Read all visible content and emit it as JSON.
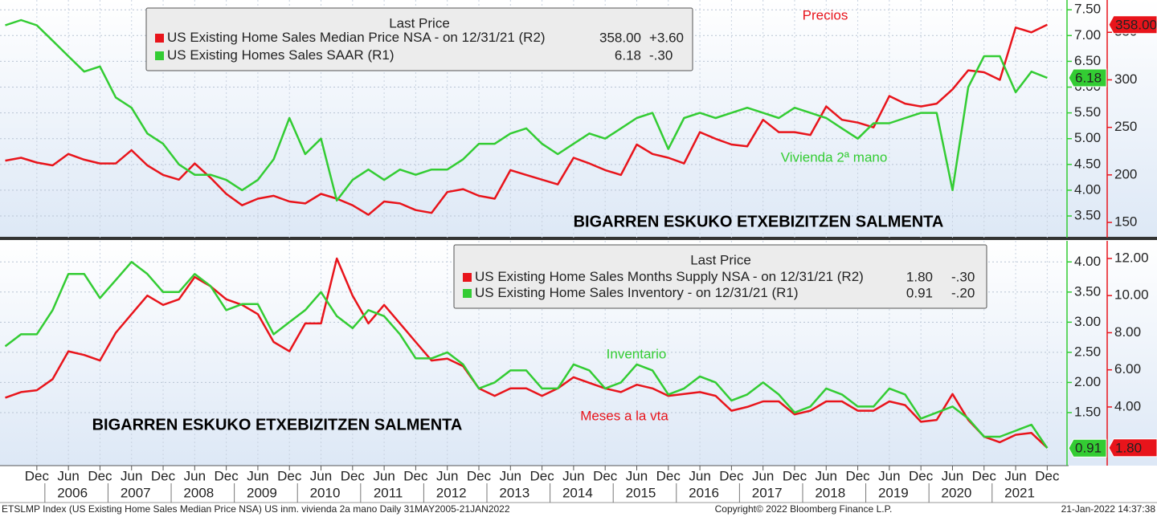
{
  "chart_data": [
    {
      "type": "line",
      "legend_title": "Last Price",
      "xlim": [
        "2005-05",
        "2022-03"
      ],
      "ylim": [
        3.08,
        7.69
      ],
      "yticks": [
        {
          "value": 3.5,
          "label": "3.50"
        },
        {
          "value": 4,
          "label": "4.00"
        },
        {
          "value": 4.5,
          "label": "4.50"
        },
        {
          "value": 5,
          "label": "5.00"
        },
        {
          "value": 5.5,
          "label": "5.50"
        },
        {
          "value": 6,
          "label": "6.00"
        },
        {
          "value": 6.5,
          "label": "6.50"
        },
        {
          "value": 7,
          "label": "7.00"
        },
        {
          "value": 7.5,
          "label": "7.50"
        }
      ],
      "y2lim": [
        134,
        384
      ],
      "y2ticks": [
        150,
        200,
        250,
        300,
        350
      ],
      "grid": true,
      "x": [
        "2005-06",
        "2005-09",
        "2005-12",
        "2006-03",
        "2006-06",
        "2006-09",
        "2006-12",
        "2007-03",
        "2007-06",
        "2007-09",
        "2007-12",
        "2008-03",
        "2008-06",
        "2008-09",
        "2008-12",
        "2009-03",
        "2009-06",
        "2009-09",
        "2009-12",
        "2010-03",
        "2010-06",
        "2010-09",
        "2010-12",
        "2011-03",
        "2011-06",
        "2011-09",
        "2011-12",
        "2012-03",
        "2012-06",
        "2012-09",
        "2012-12",
        "2013-03",
        "2013-06",
        "2013-09",
        "2013-12",
        "2014-03",
        "2014-06",
        "2014-09",
        "2014-12",
        "2015-03",
        "2015-06",
        "2015-09",
        "2015-12",
        "2016-03",
        "2016-06",
        "2016-09",
        "2016-12",
        "2017-03",
        "2017-06",
        "2017-09",
        "2017-12",
        "2018-03",
        "2018-06",
        "2018-09",
        "2018-12",
        "2019-03",
        "2019-06",
        "2019-09",
        "2019-12",
        "2020-03",
        "2020-06",
        "2020-09",
        "2020-12",
        "2021-03",
        "2021-06",
        "2021-09",
        "2021-12"
      ],
      "series": [
        {
          "name": "US Existing Home Sales Median Price NSA",
          "note": "-  on 12/31/21  (R2)",
          "last_label": "358.00",
          "change": "+3.60",
          "color": "#e8141b",
          "axis": "y2",
          "values": [
            215,
            218,
            213,
            210,
            222,
            216,
            212,
            212,
            226,
            210,
            200,
            195,
            212,
            197,
            180,
            168,
            175,
            178,
            172,
            170,
            180,
            175,
            168,
            158,
            172,
            170,
            163,
            160,
            182,
            185,
            178,
            175,
            205,
            200,
            195,
            190,
            218,
            212,
            205,
            200,
            232,
            222,
            218,
            212,
            245,
            238,
            232,
            230,
            258,
            245,
            245,
            242,
            272,
            258,
            255,
            250,
            283,
            275,
            272,
            275,
            290,
            310,
            308,
            300,
            355,
            350,
            358
          ]
        },
        {
          "name": "US Existing Homes Sales SAAR",
          "note": "(R1)",
          "last_label": "6.18",
          "change": "-.30",
          "color": "#33cc33",
          "axis": "y",
          "values": [
            7.2,
            7.3,
            7.2,
            6.9,
            6.6,
            6.3,
            6.4,
            5.8,
            5.6,
            5.1,
            4.9,
            4.5,
            4.3,
            4.3,
            4.2,
            4.0,
            4.2,
            4.6,
            5.4,
            4.7,
            5.0,
            3.8,
            4.2,
            4.4,
            4.2,
            4.4,
            4.3,
            4.4,
            4.4,
            4.6,
            4.9,
            4.9,
            5.1,
            5.2,
            4.9,
            4.7,
            4.9,
            5.1,
            5.0,
            5.2,
            5.4,
            5.5,
            4.8,
            5.4,
            5.5,
            5.4,
            5.5,
            5.6,
            5.5,
            5.4,
            5.6,
            5.5,
            5.4,
            5.2,
            5.0,
            5.3,
            5.3,
            5.4,
            5.5,
            5.5,
            4.0,
            6.0,
            6.6,
            6.6,
            5.9,
            6.3,
            6.18
          ]
        }
      ],
      "annotations": [
        {
          "text": "Precios",
          "color": "#e8141b"
        },
        {
          "text": "Vivienda 2ª mano",
          "color": "#33cc33"
        },
        {
          "text": "BIGARREN ESKUKO ETXEBIZITZEN SALMENTA",
          "color": "#000000"
        }
      ]
    },
    {
      "type": "line",
      "legend_title": "Last Price",
      "xlim": [
        "2005-05",
        "2022-03"
      ],
      "ylim": [
        0.62,
        4.35
      ],
      "yticks": [
        {
          "value": 1.5,
          "label": "1.50"
        },
        {
          "value": 2,
          "label": "2.00"
        },
        {
          "value": 2.5,
          "label": "2.50"
        },
        {
          "value": 3,
          "label": "3.00"
        },
        {
          "value": 3.5,
          "label": "3.50"
        },
        {
          "value": 4,
          "label": "4.00"
        }
      ],
      "y2lim": [
        0.84,
        12.95
      ],
      "y2ticks": [
        {
          "value": 4,
          "label": "4.00"
        },
        {
          "value": 6,
          "label": "6.00"
        },
        {
          "value": 8,
          "label": "8.00"
        },
        {
          "value": 10,
          "label": "10.00"
        },
        {
          "value": 12,
          "label": "12.00"
        }
      ],
      "grid": true,
      "x": [
        "2005-06",
        "2005-09",
        "2005-12",
        "2006-03",
        "2006-06",
        "2006-09",
        "2006-12",
        "2007-03",
        "2007-06",
        "2007-09",
        "2007-12",
        "2008-03",
        "2008-06",
        "2008-09",
        "2008-12",
        "2009-03",
        "2009-06",
        "2009-09",
        "2009-12",
        "2010-03",
        "2010-06",
        "2010-09",
        "2010-12",
        "2011-03",
        "2011-06",
        "2011-09",
        "2011-12",
        "2012-03",
        "2012-06",
        "2012-09",
        "2012-12",
        "2013-03",
        "2013-06",
        "2013-09",
        "2013-12",
        "2014-03",
        "2014-06",
        "2014-09",
        "2014-12",
        "2015-03",
        "2015-06",
        "2015-09",
        "2015-12",
        "2016-03",
        "2016-06",
        "2016-09",
        "2016-12",
        "2017-03",
        "2017-06",
        "2017-09",
        "2017-12",
        "2018-03",
        "2018-06",
        "2018-09",
        "2018-12",
        "2019-03",
        "2019-06",
        "2019-09",
        "2019-12",
        "2020-03",
        "2020-06",
        "2020-09",
        "2020-12",
        "2021-03",
        "2021-06",
        "2021-09",
        "2021-12"
      ],
      "series": [
        {
          "name": "US Existing Home Sales Months Supply NSA",
          "note": "-  on 12/31/21  (R2)",
          "last_label": "1.80",
          "change": "-.30",
          "color": "#e8141b",
          "axis": "y2",
          "values": [
            4.5,
            4.8,
            4.9,
            5.5,
            7.0,
            6.8,
            6.5,
            8.0,
            9.0,
            10.0,
            9.5,
            9.8,
            11.0,
            10.5,
            9.8,
            9.5,
            9.0,
            7.5,
            7.0,
            8.5,
            8.5,
            12.0,
            10.0,
            8.5,
            9.5,
            8.5,
            7.5,
            6.5,
            6.6,
            6.2,
            5.0,
            4.6,
            5.0,
            5.0,
            4.6,
            5.0,
            5.6,
            5.3,
            5.0,
            4.8,
            5.2,
            5.0,
            4.6,
            4.7,
            4.8,
            4.6,
            3.8,
            4.0,
            4.3,
            4.3,
            3.6,
            3.8,
            4.3,
            4.3,
            3.8,
            3.8,
            4.3,
            4.1,
            3.2,
            3.3,
            4.7,
            3.3,
            2.4,
            2.1,
            2.5,
            2.6,
            1.8
          ]
        },
        {
          "name": "US Existing Home Sales Inventory",
          "note": "-  on 12/31/21  (R1)",
          "last_label": "0.91",
          "change": "-.20",
          "color": "#33cc33",
          "axis": "y",
          "values": [
            2.6,
            2.8,
            2.8,
            3.2,
            3.8,
            3.8,
            3.4,
            3.7,
            4.0,
            3.8,
            3.5,
            3.5,
            3.8,
            3.6,
            3.2,
            3.3,
            3.3,
            2.8,
            3.0,
            3.2,
            3.5,
            3.1,
            2.9,
            3.2,
            3.1,
            2.8,
            2.4,
            2.4,
            2.5,
            2.3,
            1.9,
            2.0,
            2.2,
            2.2,
            1.9,
            1.9,
            2.3,
            2.2,
            1.9,
            2.0,
            2.3,
            2.2,
            1.8,
            1.9,
            2.1,
            2.0,
            1.7,
            1.8,
            2.0,
            1.8,
            1.5,
            1.6,
            1.9,
            1.8,
            1.6,
            1.6,
            1.9,
            1.8,
            1.4,
            1.5,
            1.6,
            1.4,
            1.1,
            1.1,
            1.2,
            1.3,
            0.91
          ]
        }
      ],
      "annotations": [
        {
          "text": "Inventario",
          "color": "#33cc33"
        },
        {
          "text": "Meses a la vta",
          "color": "#e8141b"
        },
        {
          "text": "BIGARREN ESKUKO ETXEBIZITZEN SALMENTA",
          "color": "#000000"
        }
      ]
    }
  ],
  "date_axis": {
    "ticks": [
      {
        "value": "2005-12",
        "label": "Dec"
      },
      {
        "value": "2006-06",
        "label": "Jun"
      },
      {
        "value": "2006-12",
        "label": "Dec"
      },
      {
        "value": "2007-06",
        "label": "Jun"
      },
      {
        "value": "2007-12",
        "label": "Dec"
      },
      {
        "value": "2008-06",
        "label": "Jun"
      },
      {
        "value": "2008-12",
        "label": "Dec"
      },
      {
        "value": "2009-06",
        "label": "Jun"
      },
      {
        "value": "2009-12",
        "label": "Dec"
      },
      {
        "value": "2010-06",
        "label": "Jun"
      },
      {
        "value": "2010-12",
        "label": "Dec"
      },
      {
        "value": "2011-06",
        "label": "Jun"
      },
      {
        "value": "2011-12",
        "label": "Dec"
      },
      {
        "value": "2012-06",
        "label": "Jun"
      },
      {
        "value": "2012-12",
        "label": "Dec"
      },
      {
        "value": "2013-06",
        "label": "Jun"
      },
      {
        "value": "2013-12",
        "label": "Dec"
      },
      {
        "value": "2014-06",
        "label": "Jun"
      },
      {
        "value": "2014-12",
        "label": "Dec"
      },
      {
        "value": "2015-06",
        "label": "Jun"
      },
      {
        "value": "2015-12",
        "label": "Dec"
      },
      {
        "value": "2016-06",
        "label": "Jun"
      },
      {
        "value": "2016-12",
        "label": "Dec"
      },
      {
        "value": "2017-06",
        "label": "Jun"
      },
      {
        "value": "2017-12",
        "label": "Dec"
      },
      {
        "value": "2018-06",
        "label": "Jun"
      },
      {
        "value": "2018-12",
        "label": "Dec"
      },
      {
        "value": "2019-06",
        "label": "Jun"
      },
      {
        "value": "2019-12",
        "label": "Dec"
      },
      {
        "value": "2020-06",
        "label": "Jun"
      },
      {
        "value": "2020-12",
        "label": "Dec"
      },
      {
        "value": "2021-06",
        "label": "Jun"
      },
      {
        "value": "2021-12",
        "label": "Dec"
      }
    ],
    "years": [
      "2006",
      "2007",
      "2008",
      "2009",
      "2010",
      "2011",
      "2012",
      "2013",
      "2014",
      "2015",
      "2016",
      "2017",
      "2018",
      "2019",
      "2020",
      "2021"
    ]
  },
  "footer": {
    "left": "ETSLMP Index (US Existing Home Sales Median Price NSA) US inm. vivienda 2a mano  Daily 31MAY2005-21JAN2022",
    "center": "Copyright© 2022 Bloomberg Finance L.P.",
    "right": "21-Jan-2022 14:37:38"
  }
}
